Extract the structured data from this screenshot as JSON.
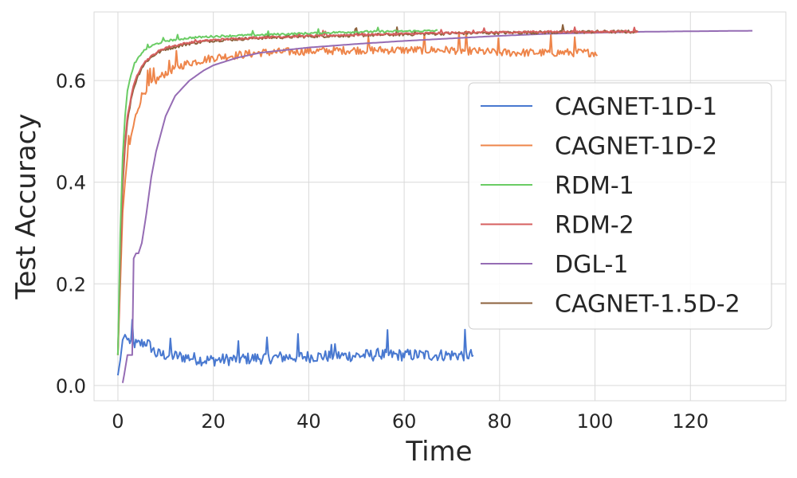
{
  "chart_data": {
    "type": "line",
    "xlabel": "Time",
    "ylabel": "Test Accuracy",
    "xlim": [
      -5,
      140
    ],
    "ylim": [
      -0.03,
      0.735
    ],
    "xticks": [
      0,
      20,
      40,
      60,
      80,
      100,
      120
    ],
    "yticks": [
      0.0,
      0.2,
      0.4,
      0.6
    ],
    "xtick_labels": [
      "0",
      "20",
      "40",
      "60",
      "80",
      "100",
      "120"
    ],
    "ytick_labels": [
      "0.0",
      "0.2",
      "0.4",
      "0.6"
    ],
    "grid": true,
    "legend_position": "center-right",
    "series": [
      {
        "name": "CAGNET-1D-1",
        "color": "#4878d0",
        "x": [
          0,
          0.5,
          1,
          1.5,
          2,
          3,
          4,
          5,
          6,
          7,
          8,
          10,
          12,
          15,
          18,
          20,
          25,
          30,
          35,
          40,
          45,
          50,
          55,
          60,
          65,
          70,
          74.5
        ],
        "y": [
          0.02,
          0.05,
          0.09,
          0.1,
          0.09,
          0.085,
          0.08,
          0.083,
          0.085,
          0.075,
          0.062,
          0.06,
          0.058,
          0.055,
          0.05,
          0.05,
          0.052,
          0.054,
          0.056,
          0.057,
          0.058,
          0.059,
          0.06,
          0.06,
          0.06,
          0.06,
          0.06
        ],
        "noise": 0.012
      },
      {
        "name": "CAGNET-1D-2",
        "color": "#ee854a",
        "x": [
          0,
          0.5,
          1,
          1.5,
          2,
          3,
          4,
          5,
          6,
          8,
          10,
          12,
          15,
          20,
          25,
          30,
          40,
          50,
          60,
          70,
          80,
          90,
          100.5
        ],
        "y": [
          0.06,
          0.2,
          0.34,
          0.4,
          0.45,
          0.5,
          0.54,
          0.57,
          0.585,
          0.6,
          0.615,
          0.625,
          0.635,
          0.645,
          0.65,
          0.655,
          0.658,
          0.66,
          0.66,
          0.66,
          0.655,
          0.655,
          0.655
        ],
        "noise": 0.008
      },
      {
        "name": "RDM-1",
        "color": "#6acc64",
        "x": [
          0,
          0.5,
          1,
          1.5,
          2,
          3,
          4,
          5,
          6,
          8,
          10,
          15,
          20,
          30,
          40,
          50,
          60,
          67
        ],
        "y": [
          0.06,
          0.3,
          0.45,
          0.53,
          0.58,
          0.62,
          0.64,
          0.655,
          0.663,
          0.672,
          0.678,
          0.684,
          0.687,
          0.69,
          0.693,
          0.696,
          0.697,
          0.698
        ],
        "noise": 0.002
      },
      {
        "name": "RDM-2",
        "color": "#d65f5f",
        "x": [
          0,
          0.5,
          1,
          1.5,
          2,
          3,
          4,
          5,
          6,
          8,
          10,
          15,
          20,
          30,
          40,
          50,
          60,
          70,
          80,
          90,
          100,
          109
        ],
        "y": [
          0.06,
          0.25,
          0.4,
          0.48,
          0.53,
          0.58,
          0.61,
          0.63,
          0.64,
          0.655,
          0.665,
          0.675,
          0.68,
          0.685,
          0.688,
          0.69,
          0.692,
          0.694,
          0.695,
          0.696,
          0.696,
          0.697
        ],
        "noise": 0.002
      },
      {
        "name": "DGL-1",
        "color": "#956cb4",
        "x": [
          1,
          1.3,
          2,
          3,
          3.3,
          3.8,
          4.3,
          5,
          6,
          7,
          8,
          10,
          12,
          15,
          18,
          20,
          25,
          30,
          40,
          50,
          60,
          70,
          80,
          90,
          100,
          110,
          120,
          133
        ],
        "y": [
          0.005,
          0.02,
          0.06,
          0.06,
          0.25,
          0.26,
          0.26,
          0.28,
          0.34,
          0.41,
          0.46,
          0.53,
          0.57,
          0.6,
          0.62,
          0.63,
          0.645,
          0.655,
          0.665,
          0.672,
          0.678,
          0.683,
          0.688,
          0.692,
          0.694,
          0.696,
          0.697,
          0.698
        ],
        "noise": 0.0
      },
      {
        "name": "CAGNET-1.5D-2",
        "color": "#8c613c",
        "x": [
          0,
          0.5,
          1,
          1.5,
          2,
          3,
          4,
          5,
          6,
          8,
          10,
          15,
          20,
          30,
          40,
          50,
          60,
          70,
          80,
          90,
          100,
          109
        ],
        "y": [
          0.06,
          0.24,
          0.39,
          0.47,
          0.52,
          0.575,
          0.605,
          0.625,
          0.638,
          0.653,
          0.662,
          0.673,
          0.679,
          0.684,
          0.687,
          0.689,
          0.691,
          0.693,
          0.694,
          0.695,
          0.696,
          0.696
        ],
        "noise": 0.003
      }
    ]
  }
}
